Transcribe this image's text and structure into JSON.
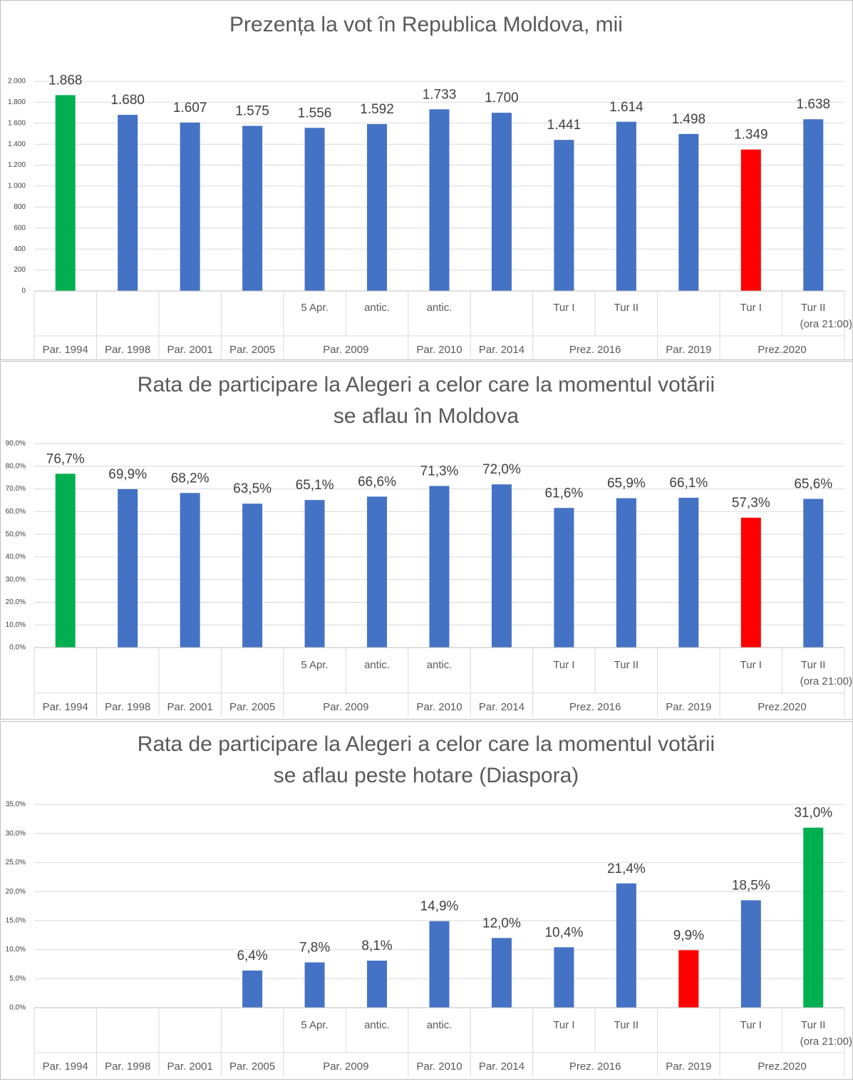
{
  "chart_data": [
    {
      "type": "bar",
      "title": [
        "Prezența la vot în Republica Moldova, mii"
      ],
      "categories": [
        null,
        null,
        null,
        null,
        "5 Apr.",
        "antic.",
        "antic.",
        null,
        "Tur I",
        "Tur II",
        null,
        "Tur I",
        "Tur II (ora 21:00)"
      ],
      "groups": [
        {
          "label": "Par. 1994",
          "span": 1
        },
        {
          "label": "Par. 1998",
          "span": 1
        },
        {
          "label": "Par. 2001",
          "span": 1
        },
        {
          "label": "Par. 2005",
          "span": 1
        },
        {
          "label": "Par. 2009",
          "span": 2
        },
        {
          "label": "Par. 2010",
          "span": 1
        },
        {
          "label": "Par. 2014",
          "span": 1
        },
        {
          "label": "Prez. 2016",
          "span": 2
        },
        {
          "label": "Par. 2019",
          "span": 1
        },
        {
          "label": "Prez.2020",
          "span": 2
        }
      ],
      "values": [
        1868,
        1680,
        1607,
        1575,
        1556,
        1592,
        1733,
        1700,
        1441,
        1614,
        1498,
        1349,
        1638
      ],
      "value_labels": [
        "1.868",
        "1.680",
        "1.607",
        "1.575",
        "1.556",
        "1.592",
        "1.733",
        "1.700",
        "1.441",
        "1.614",
        "1.498",
        "1.349",
        "1.638"
      ],
      "colors": [
        "#00b050",
        "#4472c4",
        "#4472c4",
        "#4472c4",
        "#4472c4",
        "#4472c4",
        "#4472c4",
        "#4472c4",
        "#4472c4",
        "#4472c4",
        "#4472c4",
        "#ff0000",
        "#4472c4"
      ],
      "ylim": [
        0,
        2000
      ],
      "yticks": [
        0,
        200,
        400,
        600,
        800,
        {
          "value": 1000,
          "label": "1.000"
        },
        {
          "value": 1200,
          "label": "1.200"
        },
        {
          "value": 1400,
          "label": "1.400"
        },
        {
          "value": 1600,
          "label": "1.600"
        },
        {
          "value": 1800,
          "label": "1.800"
        },
        {
          "value": 2000,
          "label": "2.000"
        }
      ],
      "grid": true
    },
    {
      "type": "bar",
      "title": [
        "Rata de participare la Alegeri a celor care la momentul votării",
        "se aflau în Moldova"
      ],
      "categories": [
        null,
        null,
        null,
        null,
        "5 Apr.",
        "antic.",
        "antic.",
        null,
        "Tur I",
        "Tur II",
        null,
        "Tur I",
        "Tur II (ora 21:00)"
      ],
      "groups": [
        {
          "label": "Par. 1994",
          "span": 1
        },
        {
          "label": "Par. 1998",
          "span": 1
        },
        {
          "label": "Par. 2001",
          "span": 1
        },
        {
          "label": "Par. 2005",
          "span": 1
        },
        {
          "label": "Par. 2009",
          "span": 2
        },
        {
          "label": "Par. 2010",
          "span": 1
        },
        {
          "label": "Par. 2014",
          "span": 1
        },
        {
          "label": "Prez. 2016",
          "span": 2
        },
        {
          "label": "Par. 2019",
          "span": 1
        },
        {
          "label": "Prez.2020",
          "span": 2
        }
      ],
      "values": [
        76.7,
        69.9,
        68.2,
        63.5,
        65.1,
        66.6,
        71.3,
        72.0,
        61.6,
        65.9,
        66.1,
        57.3,
        65.6
      ],
      "value_labels": [
        "76,7%",
        "69,9%",
        "68,2%",
        "63,5%",
        "65,1%",
        "66,6%",
        "71,3%",
        "72,0%",
        "61,6%",
        "65,9%",
        "66,1%",
        "57,3%",
        "65,6%"
      ],
      "colors": [
        "#00b050",
        "#4472c4",
        "#4472c4",
        "#4472c4",
        "#4472c4",
        "#4472c4",
        "#4472c4",
        "#4472c4",
        "#4472c4",
        "#4472c4",
        "#4472c4",
        "#ff0000",
        "#4472c4"
      ],
      "ylim": [
        0,
        90
      ],
      "yticks": [
        {
          "value": 0,
          "label": "0,0%"
        },
        {
          "value": 10,
          "label": "10,0%"
        },
        {
          "value": 20,
          "label": "20,0%"
        },
        {
          "value": 30,
          "label": "30,0%"
        },
        {
          "value": 40,
          "label": "40,0%"
        },
        {
          "value": 50,
          "label": "50,0%"
        },
        {
          "value": 60,
          "label": "60,0%"
        },
        {
          "value": 70,
          "label": "70,0%"
        },
        {
          "value": 80,
          "label": "80,0%"
        },
        {
          "value": 90,
          "label": "90,0%"
        }
      ],
      "grid": true
    },
    {
      "type": "bar",
      "title": [
        "Rata de participare la Alegeri a celor care la momentul votării",
        "se aflau peste hotare (Diaspora)"
      ],
      "categories": [
        null,
        null,
        null,
        null,
        "5 Apr.",
        "antic.",
        "antic.",
        null,
        "Tur I",
        "Tur II",
        null,
        "Tur I",
        "Tur II (ora 21:00)"
      ],
      "groups": [
        {
          "label": "Par. 1994",
          "span": 1
        },
        {
          "label": "Par. 1998",
          "span": 1
        },
        {
          "label": "Par. 2001",
          "span": 1
        },
        {
          "label": "Par. 2005",
          "span": 1
        },
        {
          "label": "Par. 2009",
          "span": 2
        },
        {
          "label": "Par. 2010",
          "span": 1
        },
        {
          "label": "Par. 2014",
          "span": 1
        },
        {
          "label": "Prez. 2016",
          "span": 2
        },
        {
          "label": "Par. 2019",
          "span": 1
        },
        {
          "label": "Prez.2020",
          "span": 2
        }
      ],
      "values": [
        null,
        null,
        null,
        6.4,
        7.8,
        8.1,
        14.9,
        12.0,
        10.4,
        21.4,
        9.9,
        18.5,
        31.0
      ],
      "value_labels": [
        null,
        null,
        null,
        "6,4%",
        "7,8%",
        "8,1%",
        "14,9%",
        "12,0%",
        "10,4%",
        "21,4%",
        "9,9%",
        "18,5%",
        "31,0%"
      ],
      "colors": [
        "#4472c4",
        "#4472c4",
        "#4472c4",
        "#4472c4",
        "#4472c4",
        "#4472c4",
        "#4472c4",
        "#4472c4",
        "#4472c4",
        "#4472c4",
        "#ff0000",
        "#4472c4",
        "#00b050"
      ],
      "ylim": [
        0,
        35
      ],
      "yticks": [
        {
          "value": 0,
          "label": "0,0%"
        },
        {
          "value": 5,
          "label": "5,0%"
        },
        {
          "value": 10,
          "label": "10,0%"
        },
        {
          "value": 15,
          "label": "15,0%"
        },
        {
          "value": 20,
          "label": "20,0%"
        },
        {
          "value": 25,
          "label": "25,0%"
        },
        {
          "value": 30,
          "label": "30,0%"
        },
        {
          "value": 35,
          "label": "35,0%"
        }
      ],
      "grid": true
    }
  ]
}
